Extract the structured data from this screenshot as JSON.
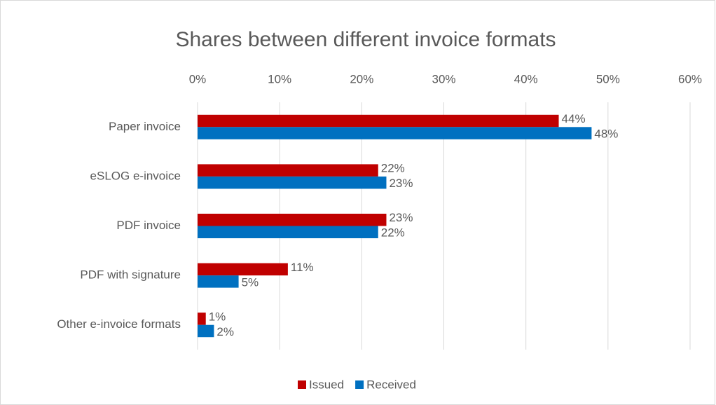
{
  "chart_data": {
    "type": "hbar",
    "title": "Shares between different invoice formats",
    "categories": [
      "Paper invoice",
      "eSLOG e-invoice",
      "PDF invoice",
      "PDF with signature",
      "Other e-invoice formats"
    ],
    "series": [
      {
        "name": "Issued",
        "color": "#c00000",
        "values": [
          44,
          22,
          23,
          11,
          1
        ],
        "value_labels": [
          "44%",
          "22%",
          "23%",
          "11%",
          "1%"
        ]
      },
      {
        "name": "Received",
        "color": "#0070c0",
        "values": [
          48,
          23,
          22,
          5,
          2
        ],
        "value_labels": [
          "48%",
          "23%",
          "22%",
          "5%",
          "2%"
        ]
      }
    ],
    "xlim": [
      0,
      60
    ],
    "xticks": [
      {
        "value": 0,
        "label": "0%"
      },
      {
        "value": 10,
        "label": "10%"
      },
      {
        "value": 20,
        "label": "20%"
      },
      {
        "value": 30,
        "label": "30%"
      },
      {
        "value": 40,
        "label": "40%"
      },
      {
        "value": 50,
        "label": "50%"
      },
      {
        "value": 60,
        "label": "60%"
      }
    ],
    "grid": true,
    "legend": "bottom"
  }
}
